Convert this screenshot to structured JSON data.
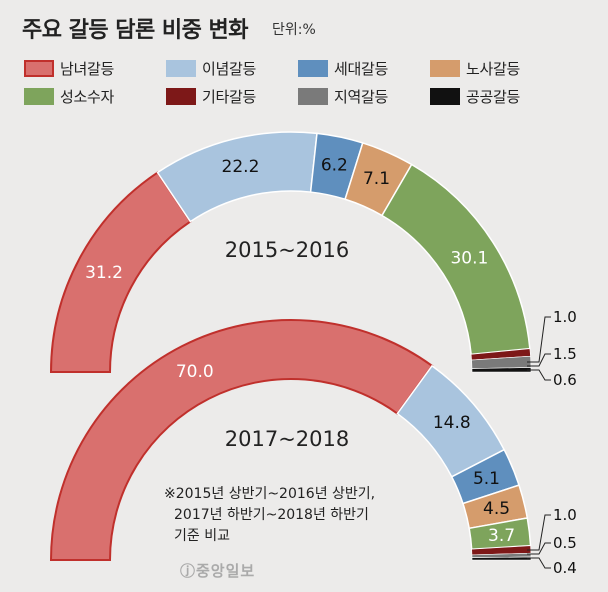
{
  "title": "주요 갈등 담론 비중 변화",
  "unit": "단위:%",
  "categories": [
    {
      "key": "gender",
      "label": "남녀갈등",
      "color": "#d9706e",
      "stroke": "#c0302c"
    },
    {
      "key": "ideology",
      "label": "이념갈등",
      "color": "#a9c4de",
      "stroke": "#a9c4de"
    },
    {
      "key": "generation",
      "label": "세대갈등",
      "color": "#5f8fbe",
      "stroke": "#5f8fbe"
    },
    {
      "key": "labor",
      "label": "노사갈등",
      "color": "#d59c6c",
      "stroke": "#d59c6c"
    },
    {
      "key": "minority",
      "label": "성소수자",
      "color": "#7ea45c",
      "stroke": "#7ea45c"
    },
    {
      "key": "other",
      "label": "기타갈등",
      "color": "#7d1818",
      "stroke": "#7d1818"
    },
    {
      "key": "region",
      "label": "지역갈등",
      "color": "#7a7a7a",
      "stroke": "#7a7a7a"
    },
    {
      "key": "public",
      "label": "공공갈등",
      "color": "#111111",
      "stroke": "#111111"
    }
  ],
  "chart_data": [
    {
      "type": "pie",
      "subtype": "half-donut",
      "title": "2015~2016",
      "categories": [
        "남녀갈등",
        "이념갈등",
        "세대갈등",
        "노사갈등",
        "성소수자",
        "기타갈등",
        "지역갈등",
        "공공갈등"
      ],
      "values": [
        31.2,
        22.2,
        6.2,
        7.1,
        30.1,
        1.0,
        1.5,
        0.6
      ],
      "labels": [
        "31.2",
        "22.2",
        "6.2",
        "7.1",
        "30.1",
        "1.0",
        "1.5",
        "0.6"
      ]
    },
    {
      "type": "pie",
      "subtype": "half-donut",
      "title": "2017~2018",
      "categories": [
        "남녀갈등",
        "이념갈등",
        "세대갈등",
        "노사갈등",
        "성소수자",
        "기타갈등",
        "지역갈등",
        "공공갈등"
      ],
      "values": [
        70.0,
        14.8,
        5.1,
        4.5,
        3.7,
        1.0,
        0.5,
        0.4
      ],
      "labels": [
        "70.0",
        "14.8",
        "5.1",
        "4.5",
        "3.7",
        "1.0",
        "0.5",
        "0.4"
      ]
    }
  ],
  "footnote": [
    "※2015년 상반기~2016년 상반기,",
    "2017년 하반기~2018년 하반기",
    "기준 비교"
  ],
  "logo": "ⓙ중앙일보"
}
